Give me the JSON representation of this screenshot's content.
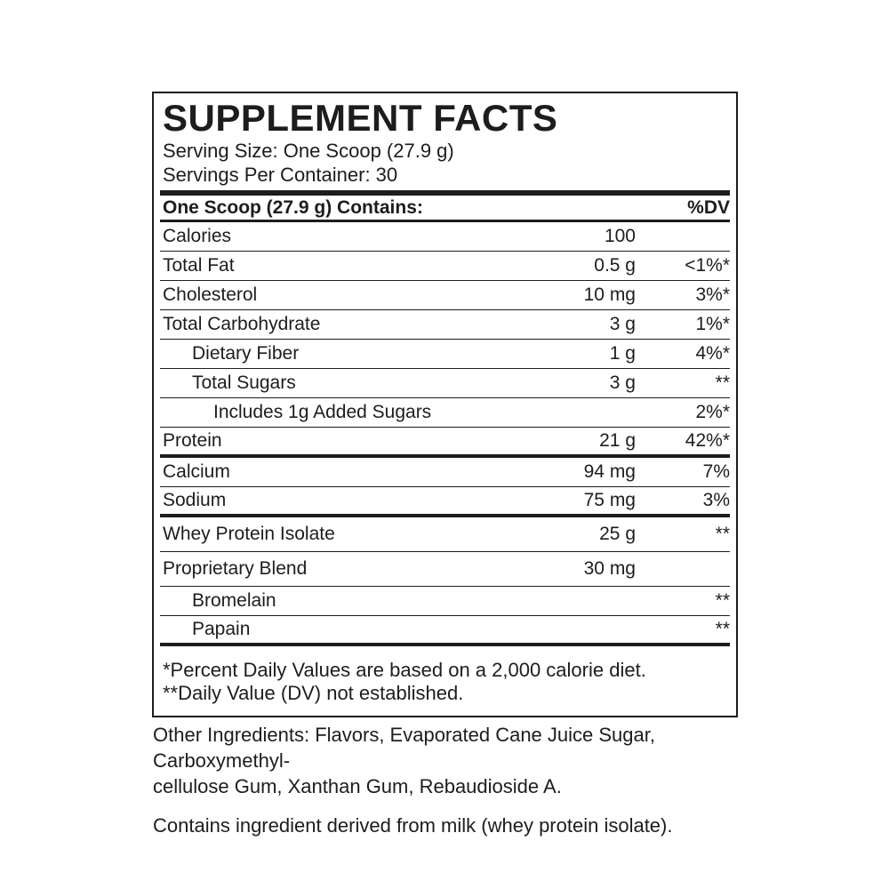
{
  "label": {
    "title": "SUPPLEMENT FACTS",
    "serving_size": "Serving Size: One Scoop (27.9 g)",
    "servings_per_container": "Servings Per Container: 30",
    "header": {
      "contains": "One Scoop (27.9 g) Contains:",
      "dv": "%DV"
    },
    "rows": [
      {
        "name": "Calories",
        "amount": "100",
        "dv": "",
        "indent": 0,
        "after": "thin",
        "tall": false
      },
      {
        "name": "Total Fat",
        "amount": "0.5 g",
        "dv": "<1%*",
        "indent": 0,
        "after": "thin",
        "tall": false
      },
      {
        "name": "Cholesterol",
        "amount": "10 mg",
        "dv": "3%*",
        "indent": 0,
        "after": "thin",
        "tall": false
      },
      {
        "name": "Total Carbohydrate",
        "amount": "3 g",
        "dv": "1%*",
        "indent": 0,
        "after": "thin",
        "tall": false
      },
      {
        "name": "Dietary Fiber",
        "amount": "1 g",
        "dv": "4%*",
        "indent": 1,
        "after": "thin",
        "tall": false
      },
      {
        "name": "Total Sugars",
        "amount": "3 g",
        "dv": "**",
        "indent": 1,
        "after": "thin",
        "tall": false
      },
      {
        "name": "Includes 1g Added Sugars",
        "amount": "",
        "dv": "2%*",
        "indent": 2,
        "after": "thin",
        "tall": false
      },
      {
        "name": "Protein",
        "amount": "21 g",
        "dv": "42%*",
        "indent": 0,
        "after": "thick",
        "tall": false
      },
      {
        "name": "Calcium",
        "amount": "94 mg",
        "dv": "7%",
        "indent": 0,
        "after": "thin",
        "tall": false
      },
      {
        "name": "Sodium",
        "amount": "75 mg",
        "dv": "3%",
        "indent": 0,
        "after": "thick",
        "tall": false
      },
      {
        "name": "Whey Protein Isolate",
        "amount": "25 g",
        "dv": "**",
        "indent": 0,
        "after": "thin",
        "tall": true
      },
      {
        "name": "Proprietary Blend",
        "amount": "30 mg",
        "dv": "",
        "indent": 0,
        "after": "thin",
        "tall": true
      },
      {
        "name": "Bromelain",
        "amount": "",
        "dv": "**",
        "indent": 1,
        "after": "thin",
        "tall": false
      },
      {
        "name": "Papain",
        "amount": "",
        "dv": "**",
        "indent": 1,
        "after": "thick",
        "tall": false
      }
    ],
    "footnotes": {
      "percent_dv": "*Percent Daily Values are based on a 2,000 calorie diet.",
      "not_established": "**Daily Value (DV) not established."
    },
    "other_ingredients": "Other Ingredients: Flavors, Evaporated Cane Juice Sugar, Carboxymethyl-\ncellulose Gum, Xanthan Gum, Rebaudioside A.",
    "allergen_statement": "Contains ingredient derived from milk (whey protein isolate).",
    "colors": {
      "text": "#1d1d1b",
      "background": "#ffffff"
    }
  }
}
